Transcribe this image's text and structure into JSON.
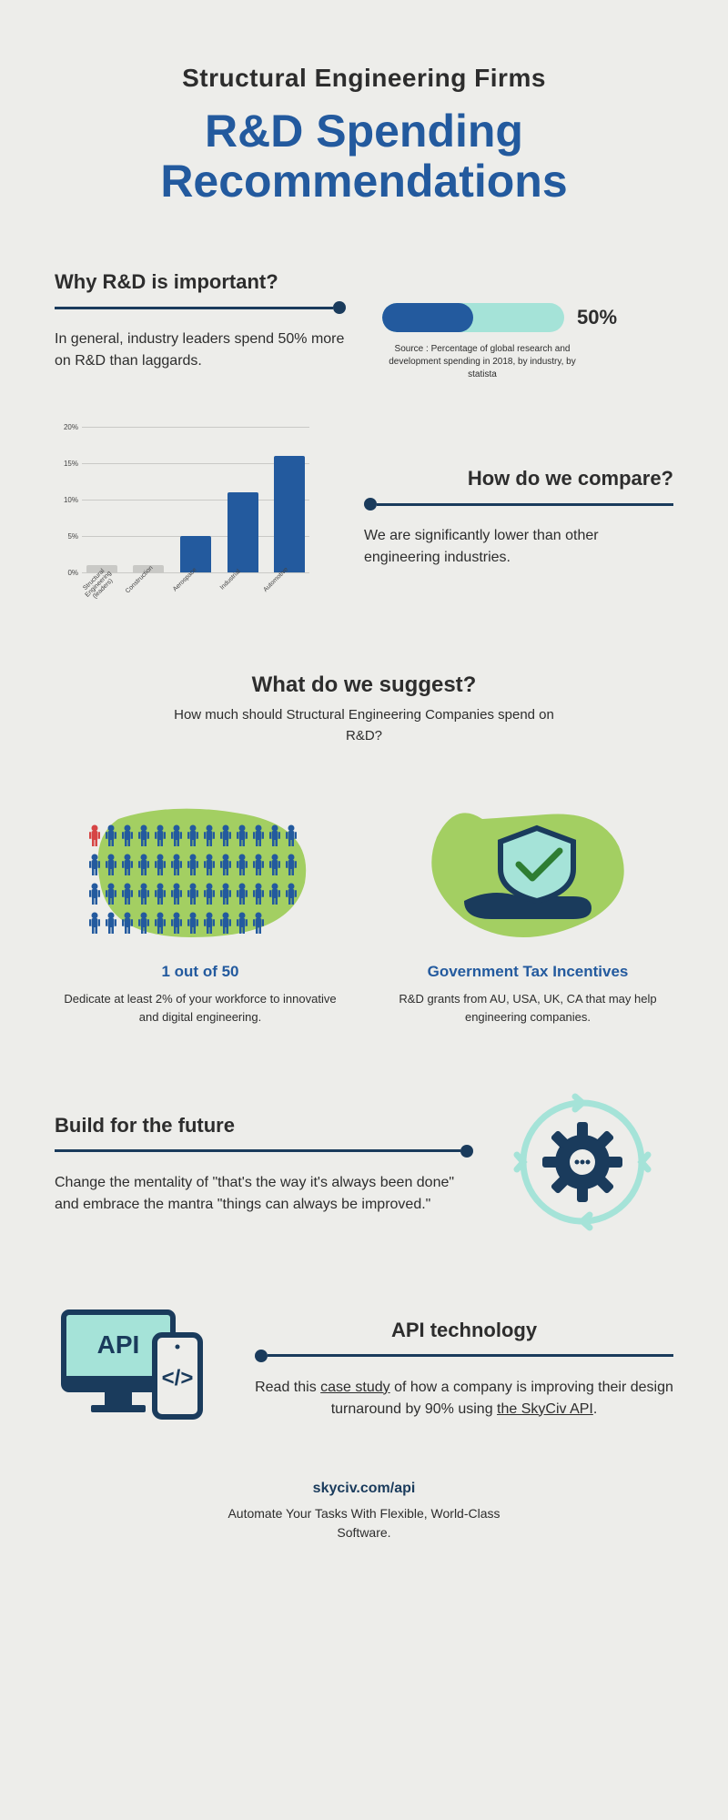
{
  "header": {
    "subtitle": "Structural Engineering Firms",
    "title": "R&D Spending Recommendations"
  },
  "section1": {
    "heading": "Why R&D is important?",
    "text": "In general, industry leaders spend 50% more on R&D than laggards.",
    "pill": {
      "percent": 50,
      "label": "50%",
      "fill_color": "#235a9e",
      "track_color": "#a5e3d8"
    },
    "source": "Source : Percentage of global research and development spending in 2018, by industry, by statista"
  },
  "chart": {
    "type": "bar",
    "categories": [
      "Structural Engineering (leaders)",
      "Construction",
      "Aerospace",
      "Industrial",
      "Automotive"
    ],
    "values": [
      1,
      1,
      5,
      11,
      16
    ],
    "ylim": [
      0,
      20
    ],
    "ytick_step": 5,
    "ytick_labels": [
      "0%",
      "5%",
      "10%",
      "15%",
      "20%"
    ],
    "main_color": "#235a9e",
    "grey_indices": [
      0,
      1
    ],
    "grey_color": "#c9c9c6",
    "grid_color": "#c9c9c6",
    "label_fontsize": 7
  },
  "section2": {
    "heading": "How do we compare?",
    "text": "We are significantly lower than other engineering industries."
  },
  "section3": {
    "heading": "What do we suggest?",
    "sub": "How much should Structural Engineering Companies spend on R&D?"
  },
  "cards": {
    "left": {
      "title": "1 out of 50",
      "text": "Dedicate at least 2% of your workforce to innovative and digital engineering."
    },
    "right": {
      "title": "Government Tax Incentives",
      "text": "R&D grants from AU, USA, UK, CA that may help engineering companies."
    }
  },
  "section4": {
    "heading": "Build for the future",
    "text": "Change the mentality of \"that's the way it's always been done\" and embrace the mantra \"things can always be improved.\""
  },
  "section5": {
    "heading": "API technology",
    "text_pre": "Read this ",
    "link1": "case study",
    "text_mid": " of how a company is improving their design turnaround by 90% using ",
    "link2": "the SkyCiv API",
    "text_post": "."
  },
  "footer": {
    "url": "skyciv.com/api",
    "tag": "Automate Your Tasks With Flexible, World-Class Software."
  },
  "colors": {
    "bg": "#ededea",
    "accent": "#235a9e",
    "dark": "#1a3b5c",
    "green": "#a3cf62",
    "teal": "#a5e3d8",
    "text": "#2d2d2d"
  }
}
